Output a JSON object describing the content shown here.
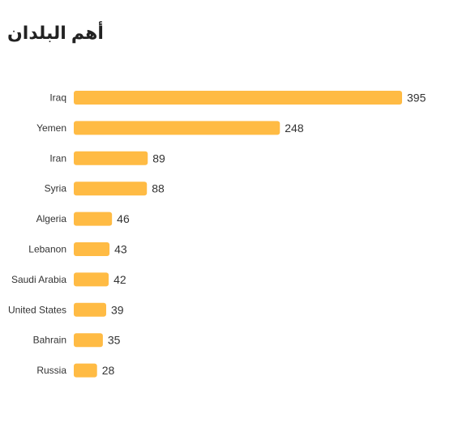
{
  "chart_data": {
    "type": "bar",
    "orientation": "horizontal",
    "title": "أهم البلدان",
    "categories": [
      "Iraq",
      "Yemen",
      "Iran",
      "Syria",
      "Algeria",
      "Lebanon",
      "Saudi Arabia",
      "United States",
      "Bahrain",
      "Russia"
    ],
    "values": [
      395,
      248,
      89,
      88,
      46,
      43,
      42,
      39,
      35,
      28
    ],
    "data_labels": [
      "395",
      "248",
      "89",
      "88",
      "46",
      "43",
      "42",
      "39",
      "35",
      "28"
    ],
    "bar_color": "#FFBB44",
    "xlabel": "",
    "ylabel": "",
    "grid": false,
    "legend": "none"
  }
}
